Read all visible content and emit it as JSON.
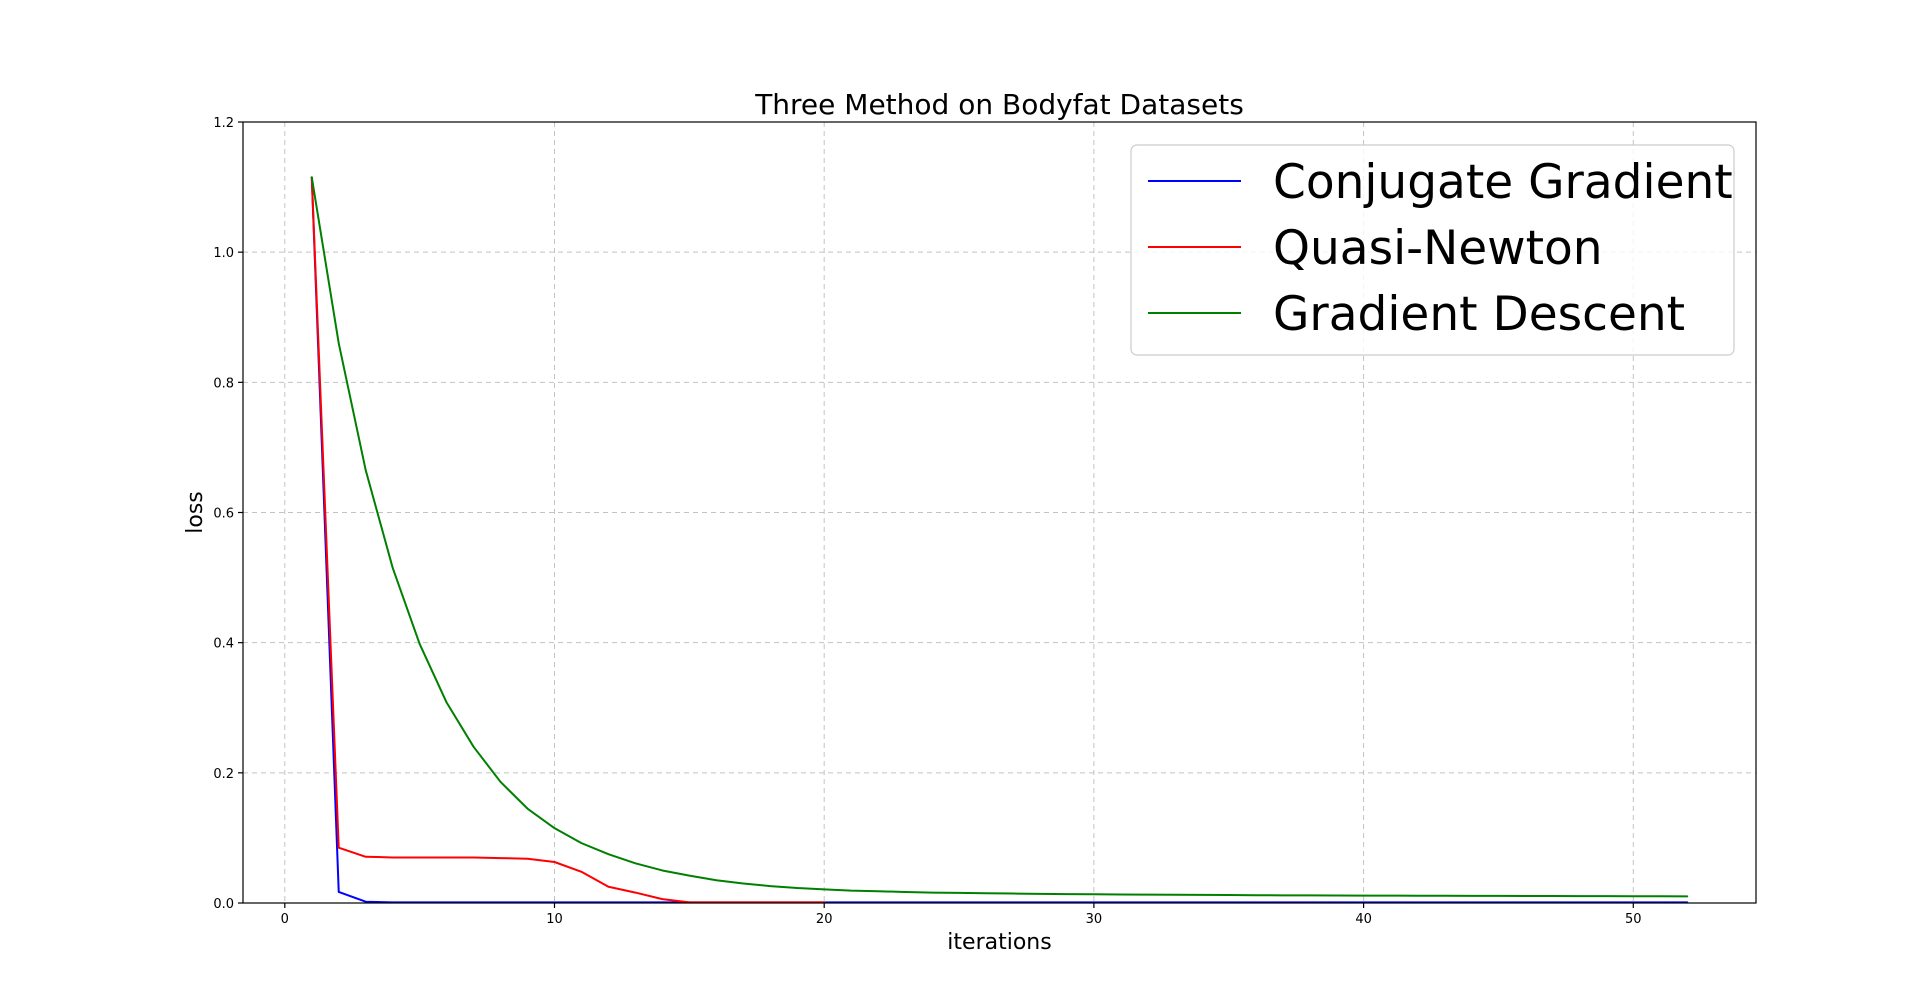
{
  "chart_data": {
    "type": "line",
    "title": "Three Method on Bodyfat Datasets",
    "xlabel": "iterations",
    "ylabel": "loss",
    "xlim": [
      -1.55,
      54.55
    ],
    "ylim": [
      0.0,
      1.2
    ],
    "xticks": [
      0,
      10,
      20,
      30,
      40,
      50
    ],
    "yticks": [
      0.0,
      0.2,
      0.4,
      0.6,
      0.8,
      1.0,
      1.2
    ],
    "xtick_labels": [
      "0",
      "10",
      "20",
      "30",
      "40",
      "50"
    ],
    "ytick_labels": [
      "0.0",
      "0.2",
      "0.4",
      "0.6",
      "0.8",
      "1.0",
      "1.2"
    ],
    "grid": true,
    "legend_position": "top-right",
    "series": [
      {
        "name": "Conjugate Gradient",
        "color": "#0000ff",
        "x": [
          1,
          2,
          3,
          4,
          5,
          6,
          7,
          8,
          9,
          10,
          11,
          12,
          13,
          14,
          15,
          16,
          17,
          18,
          19,
          20,
          21,
          22,
          23,
          24,
          25,
          26,
          27,
          28,
          29,
          30,
          31,
          32,
          33,
          34,
          35,
          36,
          37,
          38,
          39,
          40,
          41,
          42,
          43,
          44,
          45,
          46,
          47,
          48,
          49,
          50,
          51,
          52
        ],
        "values": [
          1.115,
          0.017,
          0.002,
          0.001,
          0.001,
          0.001,
          0.001,
          0.001,
          0.001,
          0.001,
          0.001,
          0.001,
          0.001,
          0.001,
          0.001,
          0.001,
          0.001,
          0.001,
          0.001,
          0.001,
          0.001,
          0.001,
          0.001,
          0.001,
          0.001,
          0.001,
          0.001,
          0.001,
          0.001,
          0.001,
          0.001,
          0.001,
          0.001,
          0.001,
          0.001,
          0.001,
          0.001,
          0.001,
          0.001,
          0.001,
          0.001,
          0.001,
          0.001,
          0.001,
          0.001,
          0.001,
          0.001,
          0.001,
          0.001,
          0.001,
          0.001,
          0.001
        ]
      },
      {
        "name": "Quasi-Newton",
        "color": "#ff0000",
        "x": [
          1,
          2,
          3,
          4,
          5,
          6,
          7,
          8,
          9,
          10,
          11,
          12,
          13,
          14,
          15,
          16,
          17,
          18,
          19,
          20
        ],
        "values": [
          1.115,
          0.085,
          0.071,
          0.07,
          0.07,
          0.07,
          0.07,
          0.069,
          0.068,
          0.063,
          0.048,
          0.025,
          0.016,
          0.006,
          0.001,
          0.001,
          0.001,
          0.001,
          0.001,
          0.001
        ]
      },
      {
        "name": "Gradient Descent",
        "color": "#008000",
        "x": [
          1,
          2,
          3,
          4,
          5,
          6,
          7,
          8,
          9,
          10,
          11,
          12,
          13,
          14,
          15,
          16,
          17,
          18,
          19,
          20,
          21,
          22,
          23,
          24,
          25,
          26,
          27,
          28,
          29,
          30,
          31,
          32,
          33,
          34,
          35,
          36,
          37,
          38,
          39,
          40,
          41,
          42,
          43,
          44,
          45,
          46,
          47,
          48,
          49,
          50,
          51,
          52
        ],
        "values": [
          1.115,
          0.86,
          0.665,
          0.515,
          0.398,
          0.308,
          0.24,
          0.186,
          0.145,
          0.115,
          0.092,
          0.075,
          0.061,
          0.05,
          0.042,
          0.035,
          0.03,
          0.026,
          0.023,
          0.021,
          0.019,
          0.018,
          0.017,
          0.016,
          0.0155,
          0.015,
          0.0145,
          0.014,
          0.0137,
          0.0134,
          0.0131,
          0.0128,
          0.0126,
          0.0124,
          0.0122,
          0.012,
          0.0118,
          0.0117,
          0.0115,
          0.0114,
          0.0113,
          0.0112,
          0.0111,
          0.011,
          0.0109,
          0.0108,
          0.0107,
          0.0106,
          0.0105,
          0.0104,
          0.0103,
          0.0102
        ]
      }
    ]
  }
}
